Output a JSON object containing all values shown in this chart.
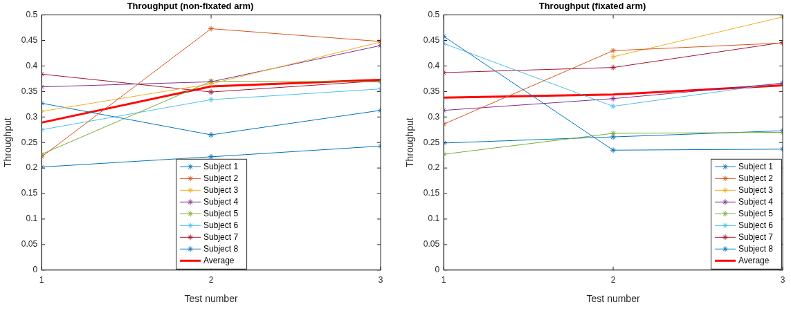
{
  "chart_data": [
    {
      "type": "line",
      "title": "Throughput (non-fixated arm)",
      "xlabel": "Test number",
      "ylabel": "Throughput",
      "x": [
        1,
        2,
        3
      ],
      "xlim": [
        1,
        3
      ],
      "xticks": [
        1,
        2,
        3
      ],
      "ylim": [
        0,
        0.5
      ],
      "yticks": [
        0,
        0.05,
        0.1,
        0.15,
        0.2,
        0.25,
        0.3,
        0.35,
        0.4,
        0.45,
        0.5
      ],
      "grid": false,
      "legend": "bottom",
      "marker": "cross",
      "series": [
        {
          "name": "Subject 1",
          "color": "#0072bd",
          "values": [
            0.202,
            0.222,
            0.243
          ]
        },
        {
          "name": "Subject 2",
          "color": "#d95319",
          "values": [
            0.222,
            0.473,
            0.448
          ]
        },
        {
          "name": "Subject 3",
          "color": "#edb120",
          "values": [
            0.311,
            0.365,
            0.447
          ]
        },
        {
          "name": "Subject 4",
          "color": "#7e2f8e",
          "values": [
            0.359,
            0.369,
            0.44
          ]
        },
        {
          "name": "Subject 5",
          "color": "#77ac30",
          "values": [
            0.227,
            0.37,
            0.369
          ]
        },
        {
          "name": "Subject 6",
          "color": "#4dbeee",
          "values": [
            0.275,
            0.334,
            0.355
          ]
        },
        {
          "name": "Subject 7",
          "color": "#a2142f",
          "values": [
            0.384,
            0.349,
            0.371
          ]
        },
        {
          "name": "Subject 8",
          "color": "#0072bd",
          "values": [
            0.327,
            0.265,
            0.313
          ]
        },
        {
          "name": "Average",
          "color": "#ff0000",
          "marker": "none",
          "values": [
            0.289,
            0.36,
            0.373
          ]
        }
      ]
    },
    {
      "type": "line",
      "title": "Throughput (fixated arm)",
      "xlabel": "Test number",
      "ylabel": "Throughput",
      "x": [
        1,
        2,
        3
      ],
      "xlim": [
        1,
        3
      ],
      "xticks": [
        1,
        2,
        3
      ],
      "ylim": [
        0,
        0.5
      ],
      "yticks": [
        0,
        0.05,
        0.1,
        0.15,
        0.2,
        0.25,
        0.3,
        0.35,
        0.4,
        0.45,
        0.5
      ],
      "grid": false,
      "legend": "bottom right",
      "marker": "cross",
      "series": [
        {
          "name": "Subject 1",
          "color": "#0072bd",
          "values": [
            0.458,
            0.235,
            0.237
          ]
        },
        {
          "name": "Subject 2",
          "color": "#d95319",
          "values": [
            0.286,
            0.43,
            0.445
          ]
        },
        {
          "name": "Subject 3",
          "color": "#edb120",
          "values": [
            null,
            0.418,
            0.496
          ]
        },
        {
          "name": "Subject 4",
          "color": "#7e2f8e",
          "values": [
            0.313,
            0.336,
            0.366
          ]
        },
        {
          "name": "Subject 5",
          "color": "#77ac30",
          "values": [
            0.227,
            0.268,
            0.27
          ]
        },
        {
          "name": "Subject 6",
          "color": "#4dbeee",
          "values": [
            0.444,
            0.321,
            0.367
          ]
        },
        {
          "name": "Subject 7",
          "color": "#a2142f",
          "values": [
            0.387,
            0.397,
            0.446
          ]
        },
        {
          "name": "Subject 8",
          "color": "#0072bd",
          "values": [
            0.249,
            0.261,
            0.273
          ]
        },
        {
          "name": "Average",
          "color": "#ff0000",
          "marker": "none",
          "values": [
            0.338,
            0.344,
            0.362
          ]
        }
      ]
    }
  ]
}
